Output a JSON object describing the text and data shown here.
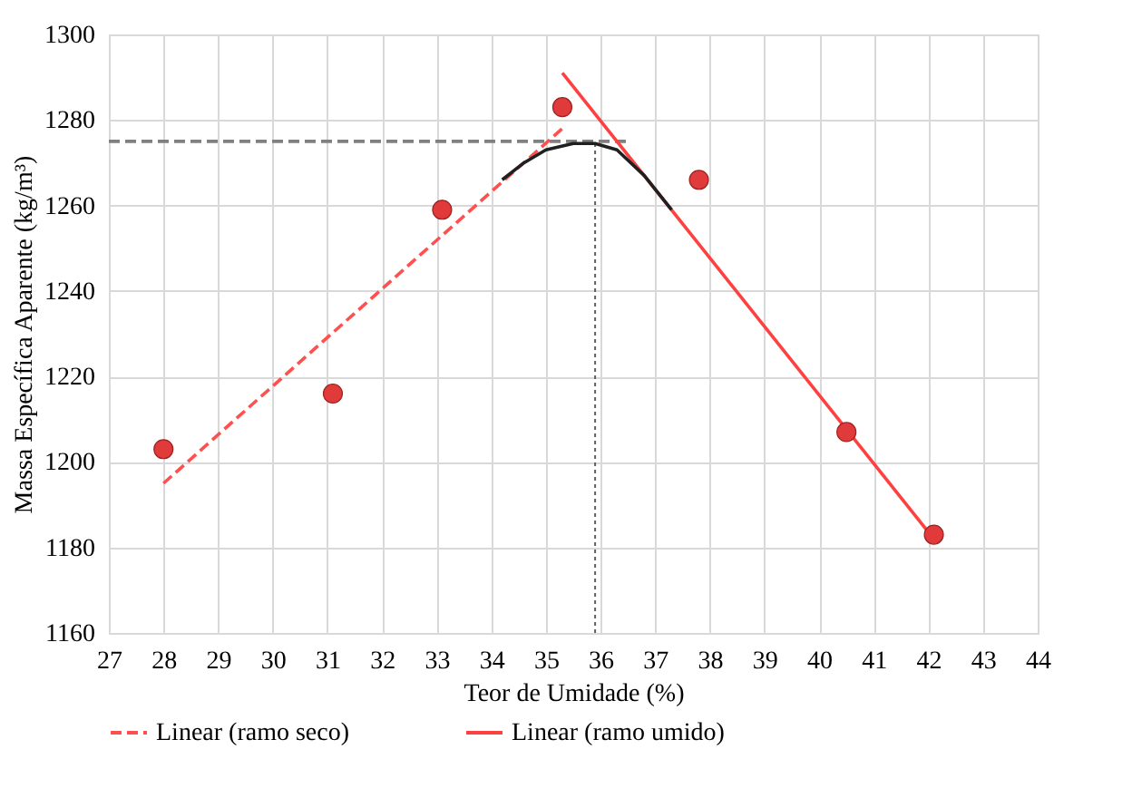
{
  "chart_data": {
    "type": "scatter",
    "xlabel": "Teor de Umidade (%)",
    "ylabel": "Massa Específica Aparente (kg/m³)",
    "xlim": [
      27,
      44
    ],
    "xticks": [
      27,
      28,
      29,
      30,
      31,
      32,
      33,
      34,
      35,
      36,
      37,
      38,
      39,
      40,
      41,
      42,
      43,
      44
    ],
    "ylim": [
      1160,
      1300
    ],
    "yticks": [
      1160,
      1180,
      1200,
      1220,
      1240,
      1260,
      1280,
      1300
    ],
    "grid": true,
    "legend": "bottom",
    "series": [
      {
        "type": "line",
        "color": "#808080",
        "line_style": "dashed",
        "x": [
          27,
          36.5
        ],
        "values": [
          1275,
          1275
        ]
      },
      {
        "type": "line",
        "color": "#606060",
        "line_style": "dotted",
        "x": [
          35.9,
          35.9
        ],
        "values": [
          1160,
          1274.5
        ]
      },
      {
        "type": "line",
        "name": "Linear (ramo seco)",
        "color": "#ff5050",
        "line_style": "dashed",
        "x": [
          28,
          35.3
        ],
        "values": [
          1195,
          1278
        ]
      },
      {
        "type": "line",
        "name": "Linear (ramo umido)",
        "color": "#ff4040",
        "line_style": "solid",
        "x": [
          35.3,
          42.1
        ],
        "values": [
          1291,
          1182
        ]
      },
      {
        "type": "line",
        "color": "#202020",
        "line_style": "solid",
        "x": [
          34.2,
          34.6,
          35.0,
          35.5,
          35.9,
          36.3,
          36.8,
          37.3
        ],
        "values": [
          1266,
          1270,
          1273,
          1274.5,
          1274.5,
          1273,
          1267,
          1259
        ]
      },
      {
        "marker": "circle",
        "color": "#e03a3a",
        "x": [
          28,
          31.1,
          33.1,
          35.3,
          37.8,
          40.5,
          42.1
        ],
        "values": [
          1203,
          1216,
          1259,
          1283,
          1266,
          1207,
          1183
        ]
      }
    ]
  }
}
